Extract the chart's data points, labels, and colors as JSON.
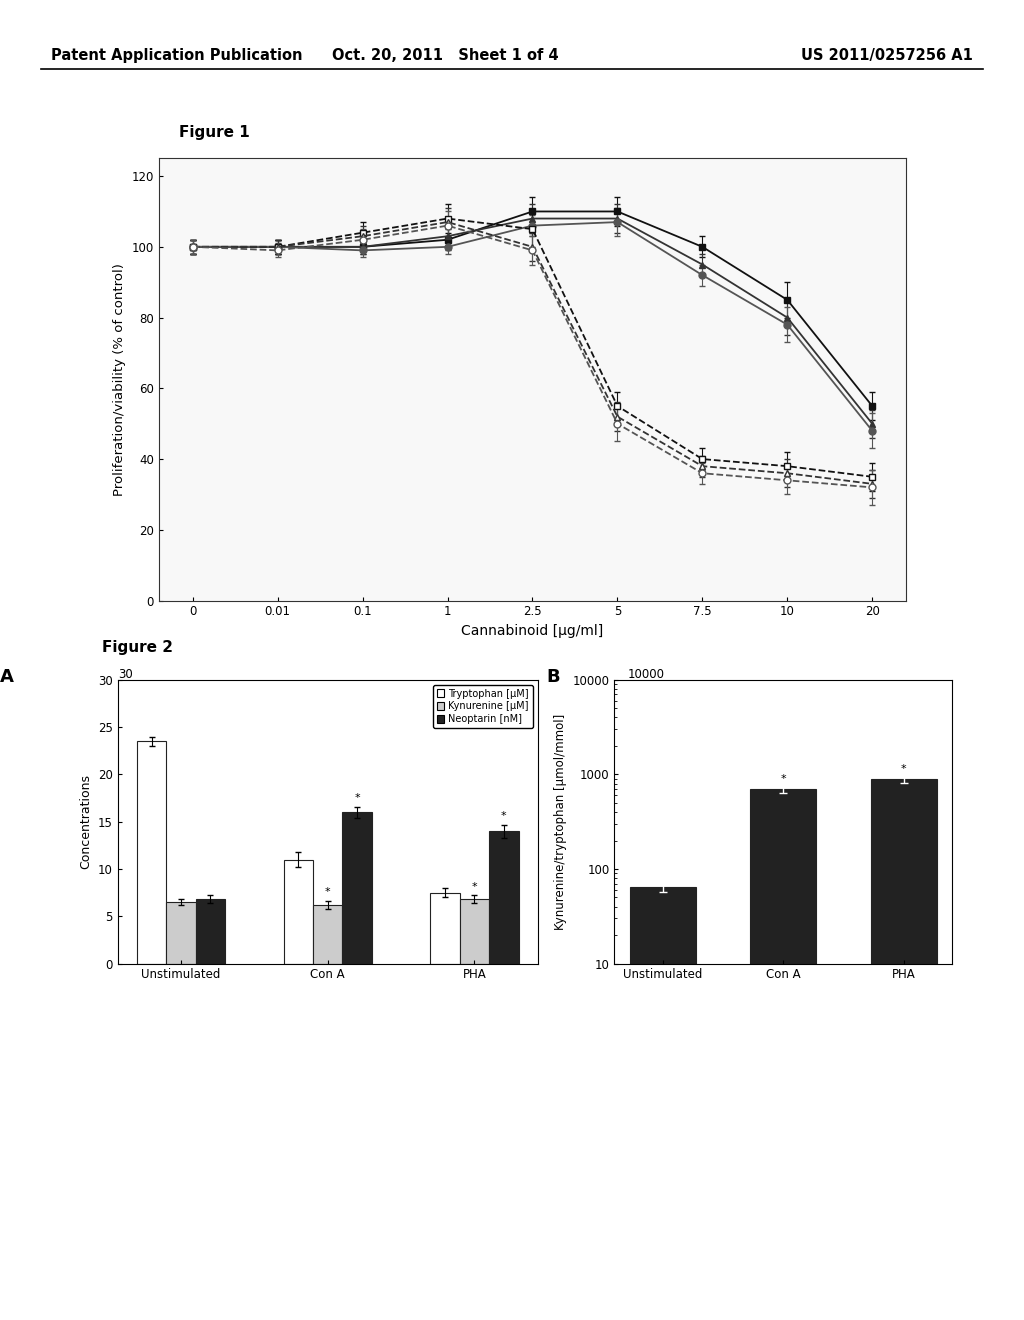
{
  "header_left": "Patent Application Publication",
  "header_center": "Oct. 20, 2011   Sheet 1 of 4",
  "header_right": "US 2011/0257256 A1",
  "fig1_title": "Figure 1",
  "fig1_xlabel": "Cannabinoid [µg/ml]",
  "fig1_ylabel": "Proliferation/viability (% of control)",
  "fig1_xticks": [
    0,
    0.01,
    0.1,
    1,
    2.5,
    5,
    7.5,
    10,
    20
  ],
  "fig1_ylim": [
    0,
    125
  ],
  "fig1_yticks": [
    0,
    20,
    40,
    60,
    80,
    100,
    120
  ],
  "fig1_series": [
    {
      "name": "solid_square_filled",
      "y": [
        100,
        100,
        100,
        102,
        110,
        110,
        100,
        85,
        55
      ],
      "yerr": [
        2,
        2,
        2,
        3,
        4,
        4,
        3,
        5,
        4
      ],
      "style": "solid",
      "color": "#111111",
      "marker": "s",
      "fillstyle": "full"
    },
    {
      "name": "solid_triangle_filled",
      "y": [
        100,
        100,
        100,
        103,
        108,
        108,
        95,
        80,
        50
      ],
      "yerr": [
        2,
        2,
        2,
        3,
        4,
        4,
        3,
        5,
        4
      ],
      "style": "solid",
      "color": "#333333",
      "marker": "^",
      "fillstyle": "full"
    },
    {
      "name": "solid_circle_filled",
      "y": [
        100,
        100,
        99,
        100,
        106,
        107,
        92,
        78,
        48
      ],
      "yerr": [
        2,
        2,
        2,
        2,
        3,
        4,
        3,
        5,
        5
      ],
      "style": "solid",
      "color": "#555555",
      "marker": "o",
      "fillstyle": "full"
    },
    {
      "name": "dashed_square_open",
      "y": [
        100,
        100,
        104,
        108,
        105,
        55,
        40,
        38,
        35
      ],
      "yerr": [
        2,
        2,
        3,
        4,
        5,
        4,
        3,
        4,
        4
      ],
      "style": "dashed",
      "color": "#111111",
      "marker": "s",
      "fillstyle": "none"
    },
    {
      "name": "dashed_triangle_open",
      "y": [
        100,
        100,
        103,
        107,
        100,
        52,
        38,
        36,
        33
      ],
      "yerr": [
        2,
        2,
        3,
        4,
        4,
        4,
        3,
        4,
        4
      ],
      "style": "dashed",
      "color": "#333333",
      "marker": "^",
      "fillstyle": "none"
    },
    {
      "name": "dashed_circle_open",
      "y": [
        100,
        99,
        102,
        106,
        99,
        50,
        36,
        34,
        32
      ],
      "yerr": [
        2,
        2,
        3,
        4,
        4,
        5,
        3,
        4,
        5
      ],
      "style": "dashed",
      "color": "#555555",
      "marker": "o",
      "fillstyle": "none"
    }
  ],
  "fig2_title": "Figure 2",
  "fig2a_ylabel": "Concentrations",
  "fig2a_ylim": [
    0,
    30
  ],
  "fig2a_yticks": [
    0,
    5,
    10,
    15,
    20,
    25,
    30
  ],
  "fig2a_categories": [
    "Unstimulated",
    "Con A",
    "PHA"
  ],
  "fig2a_label": "A",
  "fig2a_groups": [
    {
      "name": "Tryptophan [µM]",
      "color": "#ffffff",
      "edgecolor": "#222222",
      "values": [
        23.5,
        11.0,
        7.5
      ],
      "errors": [
        0.5,
        0.8,
        0.5
      ],
      "stars": [
        false,
        false,
        false
      ]
    },
    {
      "name": "Kynurenine [µM]",
      "color": "#cccccc",
      "edgecolor": "#222222",
      "values": [
        6.5,
        6.2,
        6.8
      ],
      "errors": [
        0.3,
        0.4,
        0.4
      ],
      "stars": [
        false,
        true,
        true
      ]
    },
    {
      "name": "Neoptarin [nM]",
      "color": "#222222",
      "edgecolor": "#222222",
      "values": [
        6.8,
        16.0,
        14.0
      ],
      "errors": [
        0.4,
        0.6,
        0.7
      ],
      "stars": [
        false,
        true,
        true
      ]
    }
  ],
  "fig2b_ylabel": "Kynurenine/tryptophan [µmol/mmol]",
  "fig2b_ylim": [
    10,
    10000
  ],
  "fig2b_yticks": [
    10,
    100,
    1000,
    10000
  ],
  "fig2b_categories": [
    "Unstimulated",
    "Con A",
    "PHA"
  ],
  "fig2b_label": "B",
  "fig2b_groups": [
    {
      "name": "ratio",
      "color": "#222222",
      "edgecolor": "#222222",
      "values": [
        65,
        700,
        900
      ],
      "errors": [
        8,
        70,
        80
      ],
      "stars": [
        false,
        true,
        true
      ]
    }
  ],
  "background_color": "#ffffff",
  "text_color": "#000000"
}
